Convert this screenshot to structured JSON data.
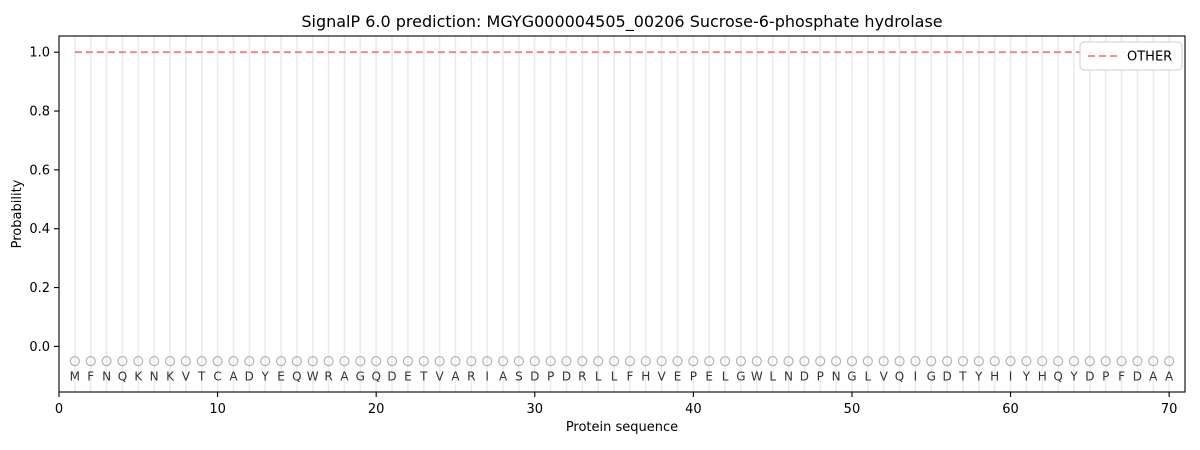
{
  "figure": {
    "kind": "matplotlib-style static plot",
    "background": "#ffffff"
  },
  "chart_data": {
    "type": "line",
    "title": "SignalP 6.0 prediction: MGYG000004505_00206 Sucrose-6-phosphate hydrolase",
    "xlabel": "Protein sequence",
    "ylabel": "Probability",
    "xlim": [
      0,
      71
    ],
    "ylim": [
      -0.155,
      1.055
    ],
    "x_ticks": [
      0,
      10,
      20,
      30,
      40,
      50,
      60,
      70
    ],
    "y_ticks": [
      "0.0",
      "0.2",
      "0.4",
      "0.6",
      "0.8",
      "1.0"
    ],
    "grid": "light vertical gridline at every residue position, no horizontal gridlines",
    "sequence": "MFNQKNKVTCADYEQWRAGQDETVARIASDPDRLLFHVEPELGWLNDPNGLVQIGDTYHIYHQYDPFDAA",
    "series": [
      {
        "name": "OTHER",
        "line_style": "dashed",
        "color": "#f08080",
        "x": [
          1,
          2,
          3,
          4,
          5,
          6,
          7,
          8,
          9,
          10,
          11,
          12,
          13,
          14,
          15,
          16,
          17,
          18,
          19,
          20,
          21,
          22,
          23,
          24,
          25,
          26,
          27,
          28,
          29,
          30,
          31,
          32,
          33,
          34,
          35,
          36,
          37,
          38,
          39,
          40,
          41,
          42,
          43,
          44,
          45,
          46,
          47,
          48,
          49,
          50,
          51,
          52,
          53,
          54,
          55,
          56,
          57,
          58,
          59,
          60,
          61,
          62,
          63,
          64,
          65,
          66,
          67,
          68,
          69,
          70
        ],
        "values": [
          1.0,
          1.0,
          1.0,
          1.0,
          1.0,
          1.0,
          1.0,
          1.0,
          1.0,
          1.0,
          1.0,
          1.0,
          1.0,
          1.0,
          1.0,
          1.0,
          1.0,
          1.0,
          1.0,
          1.0,
          1.0,
          1.0,
          1.0,
          1.0,
          1.0,
          1.0,
          1.0,
          1.0,
          1.0,
          1.0,
          1.0,
          1.0,
          1.0,
          1.0,
          1.0,
          1.0,
          1.0,
          1.0,
          1.0,
          1.0,
          1.0,
          1.0,
          1.0,
          1.0,
          1.0,
          1.0,
          1.0,
          1.0,
          1.0,
          1.0,
          1.0,
          1.0,
          1.0,
          1.0,
          1.0,
          1.0,
          1.0,
          1.0,
          1.0,
          1.0,
          1.0,
          1.0,
          1.0,
          1.0,
          1.0,
          1.0,
          1.0,
          1.0,
          1.0,
          1.0
        ]
      }
    ],
    "residue_markers": {
      "shape": "open-circle",
      "y": -0.05,
      "stroke": "#b3b3b3"
    },
    "residue_letters_y": -0.1,
    "legend": {
      "position": "upper right",
      "entries": [
        "OTHER"
      ]
    }
  },
  "colors": {
    "line": "#f08080",
    "grid": "#ebebeb",
    "axis": "#000000",
    "marker_stroke": "#b3b3b3",
    "letter": "#333333",
    "legend_border": "#cccccc",
    "legend_fill": "#ffffff"
  }
}
